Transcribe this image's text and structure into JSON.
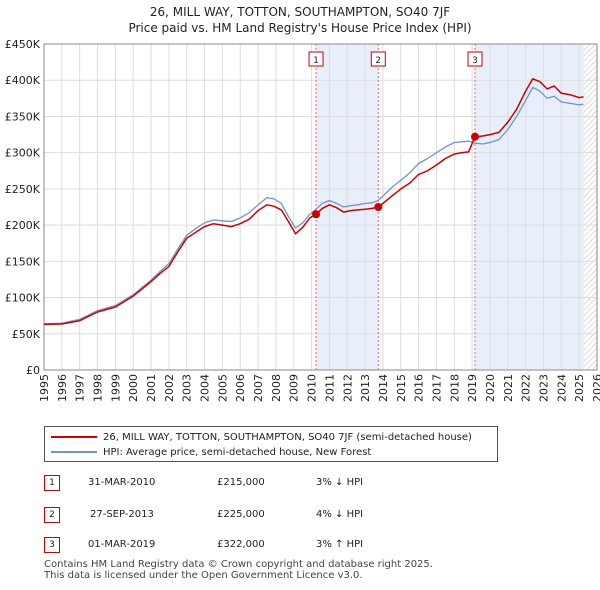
{
  "header": {
    "title": "26, MILL WAY, TOTTON, SOUTHAMPTON, SO40 7JF",
    "subtitle": "Price paid vs. HM Land Registry's House Price Index (HPI)"
  },
  "chart_data": {
    "type": "line",
    "title": "26, MILL WAY, TOTTON, SOUTHAMPTON, SO40 7JF",
    "subtitle": "Price paid vs. HM Land Registry's House Price Index (HPI)",
    "xlim": [
      1995,
      2026
    ],
    "ylim": [
      0,
      450000
    ],
    "x_ticks": [
      "1995",
      "1996",
      "1997",
      "1998",
      "1999",
      "2000",
      "2001",
      "2002",
      "2003",
      "2004",
      "2005",
      "2006",
      "2007",
      "2008",
      "2009",
      "2010",
      "2011",
      "2012",
      "2013",
      "2014",
      "2015",
      "2016",
      "2017",
      "2018",
      "2019",
      "2020",
      "2021",
      "2022",
      "2023",
      "2024",
      "2025",
      "2026"
    ],
    "y_ticks": [
      {
        "value": 0,
        "label": "£0"
      },
      {
        "value": 50000,
        "label": "£50K"
      },
      {
        "value": 100000,
        "label": "£100K"
      },
      {
        "value": 150000,
        "label": "£150K"
      },
      {
        "value": 200000,
        "label": "£200K"
      },
      {
        "value": 250000,
        "label": "£250K"
      },
      {
        "value": 300000,
        "label": "£300K"
      },
      {
        "value": 350000,
        "label": "£350K"
      },
      {
        "value": 400000,
        "label": "£400K"
      },
      {
        "value": 450000,
        "label": "£450K"
      }
    ],
    "grid": true,
    "data_end_year": 2025.25,
    "series": [
      {
        "name": "26, MILL WAY, TOTTON, SOUTHAMPTON, SO40 7JF (semi-detached house)",
        "color": "#cc0000",
        "points": [
          [
            1995.0,
            63000
          ],
          [
            1996.0,
            63500
          ],
          [
            1997.0,
            68000
          ],
          [
            1998.0,
            80000
          ],
          [
            1999.0,
            87000
          ],
          [
            2000.0,
            102000
          ],
          [
            2000.5,
            112000
          ],
          [
            2001.0,
            122000
          ],
          [
            2001.5,
            133000
          ],
          [
            2002.0,
            143000
          ],
          [
            2002.5,
            163000
          ],
          [
            2003.0,
            182000
          ],
          [
            2003.5,
            190000
          ],
          [
            2004.0,
            198000
          ],
          [
            2004.5,
            202000
          ],
          [
            2005.0,
            200000
          ],
          [
            2005.5,
            198000
          ],
          [
            2006.0,
            202000
          ],
          [
            2006.5,
            208000
          ],
          [
            2007.0,
            220000
          ],
          [
            2007.5,
            228000
          ],
          [
            2007.9,
            226000
          ],
          [
            2008.3,
            221000
          ],
          [
            2008.7,
            205000
          ],
          [
            2009.1,
            188000
          ],
          [
            2009.5,
            197000
          ],
          [
            2009.9,
            210000
          ],
          [
            2010.25,
            215000
          ],
          [
            2010.6,
            223000
          ],
          [
            2011.0,
            228000
          ],
          [
            2011.4,
            224000
          ],
          [
            2011.8,
            218000
          ],
          [
            2012.2,
            220000
          ],
          [
            2012.6,
            221000
          ],
          [
            2013.0,
            222000
          ],
          [
            2013.4,
            223000
          ],
          [
            2013.74,
            225000
          ],
          [
            2014.0,
            230000
          ],
          [
            2014.5,
            240000
          ],
          [
            2015.0,
            250000
          ],
          [
            2015.5,
            258000
          ],
          [
            2016.0,
            270000
          ],
          [
            2016.5,
            275000
          ],
          [
            2017.0,
            283000
          ],
          [
            2017.5,
            292000
          ],
          [
            2018.0,
            298000
          ],
          [
            2018.4,
            300000
          ],
          [
            2018.8,
            301000
          ],
          [
            2019.16,
            322000
          ],
          [
            2019.6,
            323000
          ],
          [
            2020.0,
            325000
          ],
          [
            2020.5,
            328000
          ],
          [
            2021.0,
            342000
          ],
          [
            2021.5,
            360000
          ],
          [
            2022.0,
            385000
          ],
          [
            2022.4,
            402000
          ],
          [
            2022.8,
            398000
          ],
          [
            2023.2,
            388000
          ],
          [
            2023.6,
            392000
          ],
          [
            2024.0,
            382000
          ],
          [
            2024.5,
            380000
          ],
          [
            2025.0,
            376000
          ],
          [
            2025.25,
            377000
          ]
        ]
      },
      {
        "name": "HPI: Average price, semi-detached house, New Forest",
        "color": "#6e96c8",
        "points": [
          [
            1995.0,
            64000
          ],
          [
            1996.0,
            64500
          ],
          [
            1997.0,
            70000
          ],
          [
            1998.0,
            82000
          ],
          [
            1999.0,
            89000
          ],
          [
            2000.0,
            104000
          ],
          [
            2000.5,
            114000
          ],
          [
            2001.0,
            124000
          ],
          [
            2001.5,
            136000
          ],
          [
            2002.0,
            147000
          ],
          [
            2002.5,
            167000
          ],
          [
            2003.0,
            186000
          ],
          [
            2003.5,
            195000
          ],
          [
            2004.0,
            203000
          ],
          [
            2004.5,
            207000
          ],
          [
            2005.0,
            206000
          ],
          [
            2005.5,
            205000
          ],
          [
            2006.0,
            210000
          ],
          [
            2006.5,
            217000
          ],
          [
            2007.0,
            228000
          ],
          [
            2007.5,
            238000
          ],
          [
            2007.9,
            236000
          ],
          [
            2008.3,
            230000
          ],
          [
            2008.7,
            212000
          ],
          [
            2009.1,
            196000
          ],
          [
            2009.5,
            203000
          ],
          [
            2009.9,
            215000
          ],
          [
            2010.25,
            222000
          ],
          [
            2010.6,
            230000
          ],
          [
            2011.0,
            234000
          ],
          [
            2011.4,
            230000
          ],
          [
            2011.8,
            225000
          ],
          [
            2012.2,
            227000
          ],
          [
            2012.6,
            228000
          ],
          [
            2013.0,
            230000
          ],
          [
            2013.4,
            231000
          ],
          [
            2013.74,
            234000
          ],
          [
            2014.0,
            240000
          ],
          [
            2014.5,
            252000
          ],
          [
            2015.0,
            262000
          ],
          [
            2015.5,
            272000
          ],
          [
            2016.0,
            285000
          ],
          [
            2016.5,
            292000
          ],
          [
            2017.0,
            300000
          ],
          [
            2017.5,
            308000
          ],
          [
            2018.0,
            314000
          ],
          [
            2018.4,
            315000
          ],
          [
            2018.8,
            316000
          ],
          [
            2019.16,
            313000
          ],
          [
            2019.6,
            312000
          ],
          [
            2020.0,
            314000
          ],
          [
            2020.5,
            318000
          ],
          [
            2021.0,
            332000
          ],
          [
            2021.5,
            350000
          ],
          [
            2022.0,
            372000
          ],
          [
            2022.4,
            390000
          ],
          [
            2022.8,
            385000
          ],
          [
            2023.2,
            375000
          ],
          [
            2023.6,
            378000
          ],
          [
            2024.0,
            370000
          ],
          [
            2024.5,
            368000
          ],
          [
            2025.0,
            366000
          ],
          [
            2025.25,
            367000
          ]
        ]
      }
    ],
    "sales": [
      {
        "id": "1",
        "x": 2010.25,
        "price": 215000
      },
      {
        "id": "2",
        "x": 2013.74,
        "price": 225000
      },
      {
        "id": "3",
        "x": 2019.16,
        "price": 322000
      }
    ]
  },
  "legend": {
    "property_label": "26, MILL WAY, TOTTON, SOUTHAMPTON, SO40 7JF (semi-detached house)",
    "hpi_label": "HPI: Average price, semi-detached house, New Forest"
  },
  "transactions": [
    {
      "num": "1",
      "date": "31-MAR-2010",
      "price": "£215,000",
      "hpi": "3% ↓ HPI"
    },
    {
      "num": "2",
      "date": "27-SEP-2013",
      "price": "£225,000",
      "hpi": "4% ↓ HPI"
    },
    {
      "num": "3",
      "date": "01-MAR-2019",
      "price": "£322,000",
      "hpi": "3% ↑ HPI"
    }
  ],
  "footer": {
    "line1": "Contains HM Land Registry data © Crown copyright and database right 2025.",
    "line2": "This data is licensed under the Open Government Licence v3.0."
  },
  "colors": {
    "property_line": "#cc0000",
    "hpi_line": "#6e96c8",
    "highlight_band": "#e8eefa",
    "grid": "#dddddd"
  }
}
